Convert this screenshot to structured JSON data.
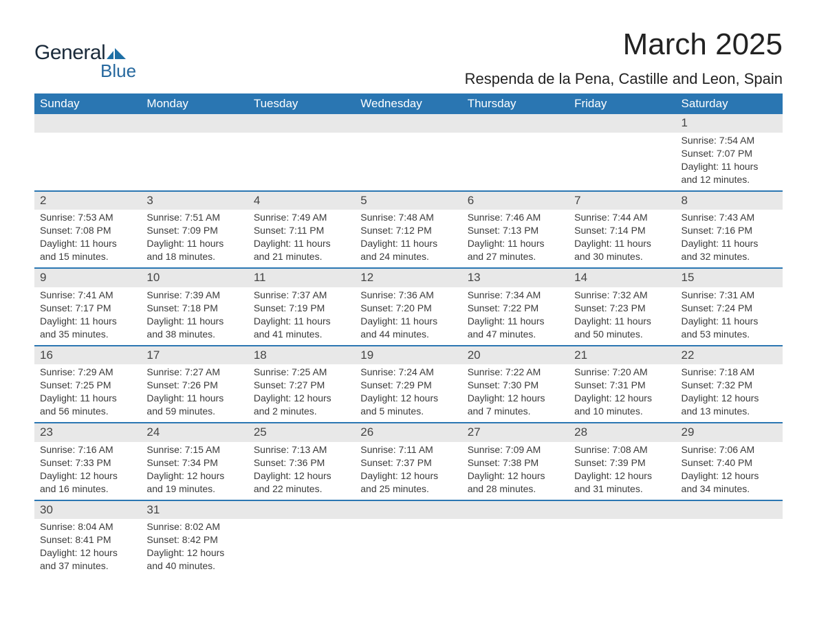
{
  "logo": {
    "text1": "General",
    "text2": "Blue",
    "shape_color": "#1d6fa5"
  },
  "title": "March 2025",
  "location": "Respenda de la Pena, Castille and Leon, Spain",
  "colors": {
    "header_bg": "#2a76b2",
    "header_text": "#ffffff",
    "daynum_bg": "#e8e8e8",
    "row_border": "#2a76b2",
    "body_text": "#3a3a3a"
  },
  "weekdays": [
    "Sunday",
    "Monday",
    "Tuesday",
    "Wednesday",
    "Thursday",
    "Friday",
    "Saturday"
  ],
  "weeks": [
    [
      null,
      null,
      null,
      null,
      null,
      null,
      {
        "n": "1",
        "sunrise": "Sunrise: 7:54 AM",
        "sunset": "Sunset: 7:07 PM",
        "day1": "Daylight: 11 hours",
        "day2": "and 12 minutes."
      }
    ],
    [
      {
        "n": "2",
        "sunrise": "Sunrise: 7:53 AM",
        "sunset": "Sunset: 7:08 PM",
        "day1": "Daylight: 11 hours",
        "day2": "and 15 minutes."
      },
      {
        "n": "3",
        "sunrise": "Sunrise: 7:51 AM",
        "sunset": "Sunset: 7:09 PM",
        "day1": "Daylight: 11 hours",
        "day2": "and 18 minutes."
      },
      {
        "n": "4",
        "sunrise": "Sunrise: 7:49 AM",
        "sunset": "Sunset: 7:11 PM",
        "day1": "Daylight: 11 hours",
        "day2": "and 21 minutes."
      },
      {
        "n": "5",
        "sunrise": "Sunrise: 7:48 AM",
        "sunset": "Sunset: 7:12 PM",
        "day1": "Daylight: 11 hours",
        "day2": "and 24 minutes."
      },
      {
        "n": "6",
        "sunrise": "Sunrise: 7:46 AM",
        "sunset": "Sunset: 7:13 PM",
        "day1": "Daylight: 11 hours",
        "day2": "and 27 minutes."
      },
      {
        "n": "7",
        "sunrise": "Sunrise: 7:44 AM",
        "sunset": "Sunset: 7:14 PM",
        "day1": "Daylight: 11 hours",
        "day2": "and 30 minutes."
      },
      {
        "n": "8",
        "sunrise": "Sunrise: 7:43 AM",
        "sunset": "Sunset: 7:16 PM",
        "day1": "Daylight: 11 hours",
        "day2": "and 32 minutes."
      }
    ],
    [
      {
        "n": "9",
        "sunrise": "Sunrise: 7:41 AM",
        "sunset": "Sunset: 7:17 PM",
        "day1": "Daylight: 11 hours",
        "day2": "and 35 minutes."
      },
      {
        "n": "10",
        "sunrise": "Sunrise: 7:39 AM",
        "sunset": "Sunset: 7:18 PM",
        "day1": "Daylight: 11 hours",
        "day2": "and 38 minutes."
      },
      {
        "n": "11",
        "sunrise": "Sunrise: 7:37 AM",
        "sunset": "Sunset: 7:19 PM",
        "day1": "Daylight: 11 hours",
        "day2": "and 41 minutes."
      },
      {
        "n": "12",
        "sunrise": "Sunrise: 7:36 AM",
        "sunset": "Sunset: 7:20 PM",
        "day1": "Daylight: 11 hours",
        "day2": "and 44 minutes."
      },
      {
        "n": "13",
        "sunrise": "Sunrise: 7:34 AM",
        "sunset": "Sunset: 7:22 PM",
        "day1": "Daylight: 11 hours",
        "day2": "and 47 minutes."
      },
      {
        "n": "14",
        "sunrise": "Sunrise: 7:32 AM",
        "sunset": "Sunset: 7:23 PM",
        "day1": "Daylight: 11 hours",
        "day2": "and 50 minutes."
      },
      {
        "n": "15",
        "sunrise": "Sunrise: 7:31 AM",
        "sunset": "Sunset: 7:24 PM",
        "day1": "Daylight: 11 hours",
        "day2": "and 53 minutes."
      }
    ],
    [
      {
        "n": "16",
        "sunrise": "Sunrise: 7:29 AM",
        "sunset": "Sunset: 7:25 PM",
        "day1": "Daylight: 11 hours",
        "day2": "and 56 minutes."
      },
      {
        "n": "17",
        "sunrise": "Sunrise: 7:27 AM",
        "sunset": "Sunset: 7:26 PM",
        "day1": "Daylight: 11 hours",
        "day2": "and 59 minutes."
      },
      {
        "n": "18",
        "sunrise": "Sunrise: 7:25 AM",
        "sunset": "Sunset: 7:27 PM",
        "day1": "Daylight: 12 hours",
        "day2": "and 2 minutes."
      },
      {
        "n": "19",
        "sunrise": "Sunrise: 7:24 AM",
        "sunset": "Sunset: 7:29 PM",
        "day1": "Daylight: 12 hours",
        "day2": "and 5 minutes."
      },
      {
        "n": "20",
        "sunrise": "Sunrise: 7:22 AM",
        "sunset": "Sunset: 7:30 PM",
        "day1": "Daylight: 12 hours",
        "day2": "and 7 minutes."
      },
      {
        "n": "21",
        "sunrise": "Sunrise: 7:20 AM",
        "sunset": "Sunset: 7:31 PM",
        "day1": "Daylight: 12 hours",
        "day2": "and 10 minutes."
      },
      {
        "n": "22",
        "sunrise": "Sunrise: 7:18 AM",
        "sunset": "Sunset: 7:32 PM",
        "day1": "Daylight: 12 hours",
        "day2": "and 13 minutes."
      }
    ],
    [
      {
        "n": "23",
        "sunrise": "Sunrise: 7:16 AM",
        "sunset": "Sunset: 7:33 PM",
        "day1": "Daylight: 12 hours",
        "day2": "and 16 minutes."
      },
      {
        "n": "24",
        "sunrise": "Sunrise: 7:15 AM",
        "sunset": "Sunset: 7:34 PM",
        "day1": "Daylight: 12 hours",
        "day2": "and 19 minutes."
      },
      {
        "n": "25",
        "sunrise": "Sunrise: 7:13 AM",
        "sunset": "Sunset: 7:36 PM",
        "day1": "Daylight: 12 hours",
        "day2": "and 22 minutes."
      },
      {
        "n": "26",
        "sunrise": "Sunrise: 7:11 AM",
        "sunset": "Sunset: 7:37 PM",
        "day1": "Daylight: 12 hours",
        "day2": "and 25 minutes."
      },
      {
        "n": "27",
        "sunrise": "Sunrise: 7:09 AM",
        "sunset": "Sunset: 7:38 PM",
        "day1": "Daylight: 12 hours",
        "day2": "and 28 minutes."
      },
      {
        "n": "28",
        "sunrise": "Sunrise: 7:08 AM",
        "sunset": "Sunset: 7:39 PM",
        "day1": "Daylight: 12 hours",
        "day2": "and 31 minutes."
      },
      {
        "n": "29",
        "sunrise": "Sunrise: 7:06 AM",
        "sunset": "Sunset: 7:40 PM",
        "day1": "Daylight: 12 hours",
        "day2": "and 34 minutes."
      }
    ],
    [
      {
        "n": "30",
        "sunrise": "Sunrise: 8:04 AM",
        "sunset": "Sunset: 8:41 PM",
        "day1": "Daylight: 12 hours",
        "day2": "and 37 minutes."
      },
      {
        "n": "31",
        "sunrise": "Sunrise: 8:02 AM",
        "sunset": "Sunset: 8:42 PM",
        "day1": "Daylight: 12 hours",
        "day2": "and 40 minutes."
      },
      null,
      null,
      null,
      null,
      null
    ]
  ]
}
